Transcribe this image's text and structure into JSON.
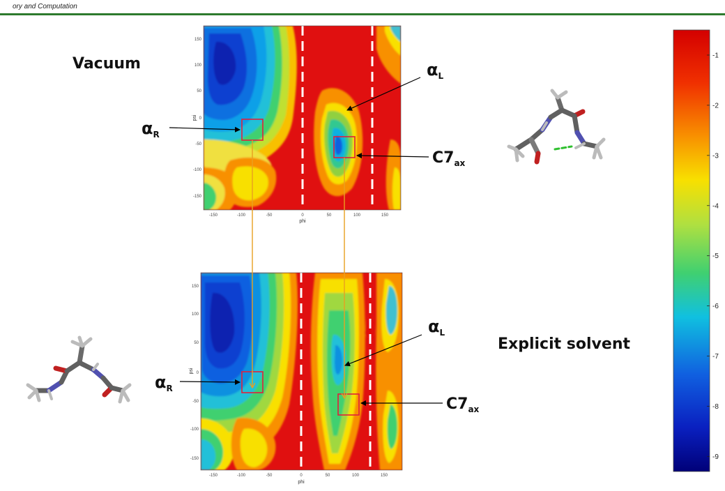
{
  "header": {
    "text": "ory and Computation"
  },
  "labels": {
    "vacuum": "Vacuum",
    "explicit_solvent": "Explicit solvent",
    "alpha_r_top": "αR",
    "alpha_l_top": "αL",
    "c7ax_top": "C7ax",
    "alpha_r_bottom": "αR",
    "alpha_l_bottom": "αL",
    "c7ax_bottom": "C7ax"
  },
  "chart_data": [
    {
      "type": "heatmap",
      "name_hint": "top-panel",
      "xlabel": "phi",
      "ylabel": "psi",
      "xticks": [
        -150,
        -100,
        -50,
        0,
        50,
        100,
        150
      ],
      "yticks": [
        150,
        100,
        50,
        0,
        -50,
        -100,
        -150
      ],
      "xlim": [
        -180,
        180
      ],
      "ylim": [
        -180,
        180
      ],
      "dashed_lines_phi": [
        0,
        120
      ],
      "regions": [
        {
          "name": "alphaR",
          "phi": -80,
          "psi": -20
        },
        {
          "name": "C7ax",
          "phi": 75,
          "psi": -60
        }
      ]
    },
    {
      "type": "heatmap",
      "name_hint": "bottom-panel",
      "xlabel": "phi",
      "ylabel": "psi",
      "xticks": [
        -150,
        -100,
        -50,
        0,
        50,
        100,
        150
      ],
      "yticks": [
        150,
        100,
        50,
        0,
        -50,
        -100,
        -150
      ],
      "xlim": [
        -180,
        180
      ],
      "ylim": [
        -180,
        180
      ],
      "dashed_lines_phi": [
        0,
        120
      ],
      "regions": [
        {
          "name": "alphaR",
          "phi": -80,
          "psi": -10
        },
        {
          "name": "C7ax",
          "phi": 75,
          "psi": -75
        }
      ]
    },
    {
      "type": "colorbar",
      "ticks": [
        -1,
        -2,
        -3,
        -4,
        -5,
        -6,
        -7,
        -8,
        -9
      ],
      "range": [
        -9.3,
        -0.5
      ]
    }
  ]
}
